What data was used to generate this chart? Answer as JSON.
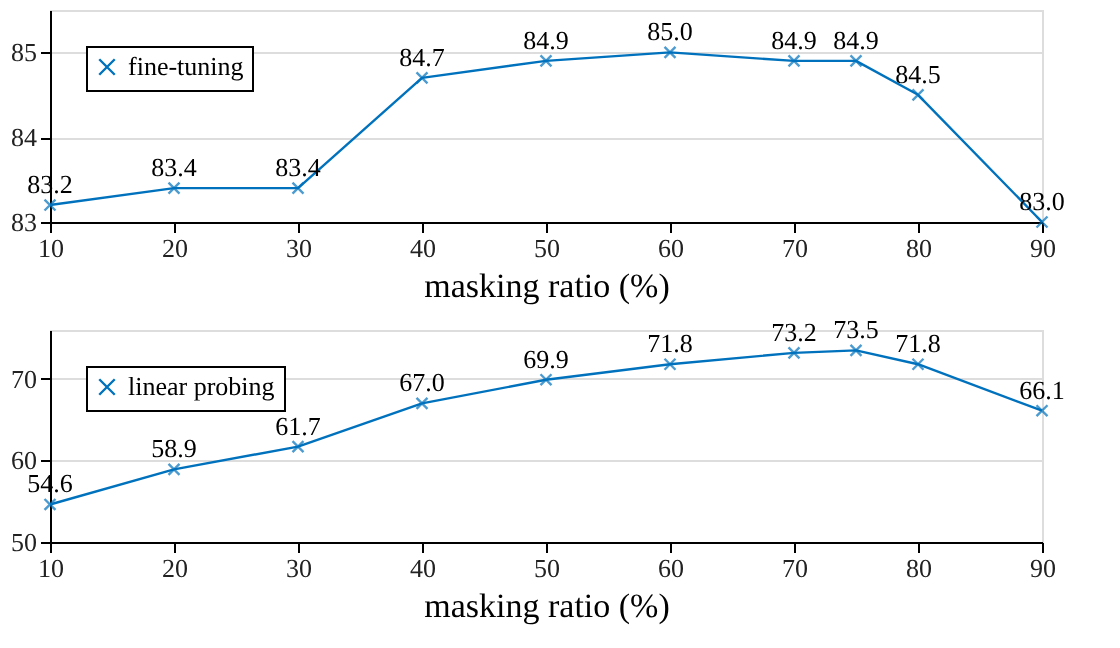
{
  "chart_data": [
    {
      "type": "line",
      "xlabel": "masking ratio (%)",
      "x": [
        10,
        20,
        30,
        40,
        50,
        60,
        70,
        75,
        80,
        90
      ],
      "series": [
        {
          "name": "fine-tuning",
          "color": "#0072bd",
          "values": [
            83.2,
            83.4,
            83.4,
            84.7,
            84.9,
            85.0,
            84.9,
            84.9,
            84.5,
            83.0
          ],
          "value_labels": [
            "83.2",
            "83.4",
            "83.4",
            "84.7",
            "84.9",
            "85.0",
            "84.9",
            "84.9",
            "84.5",
            "83.0"
          ]
        }
      ],
      "xlim": [
        10,
        90
      ],
      "xticks": [
        10,
        20,
        30,
        40,
        50,
        60,
        70,
        80,
        90
      ],
      "ylim": [
        83,
        85.5
      ],
      "yticks": [
        83,
        84,
        85
      ],
      "grid": "y",
      "legend": "top left",
      "marker": "cross",
      "line_style": "solid"
    },
    {
      "type": "line",
      "xlabel": "masking ratio (%)",
      "x": [
        10,
        20,
        30,
        40,
        50,
        60,
        70,
        75,
        80,
        90
      ],
      "series": [
        {
          "name": "linear probing",
          "color": "#0072bd",
          "values": [
            54.6,
            58.9,
            61.7,
            67.0,
            69.9,
            71.8,
            73.2,
            73.5,
            71.8,
            66.1
          ],
          "value_labels": [
            "54.6",
            "58.9",
            "61.7",
            "67.0",
            "69.9",
            "71.8",
            "73.2",
            "73.5",
            "71.8",
            "66.1"
          ]
        }
      ],
      "xlim": [
        10,
        90
      ],
      "xticks": [
        10,
        20,
        30,
        40,
        50,
        60,
        70,
        80,
        90
      ],
      "ylim": [
        50,
        76
      ],
      "yticks": [
        50,
        60,
        70
      ],
      "grid": "y",
      "legend": "top left",
      "marker": "cross",
      "line_style": "solid"
    }
  ]
}
